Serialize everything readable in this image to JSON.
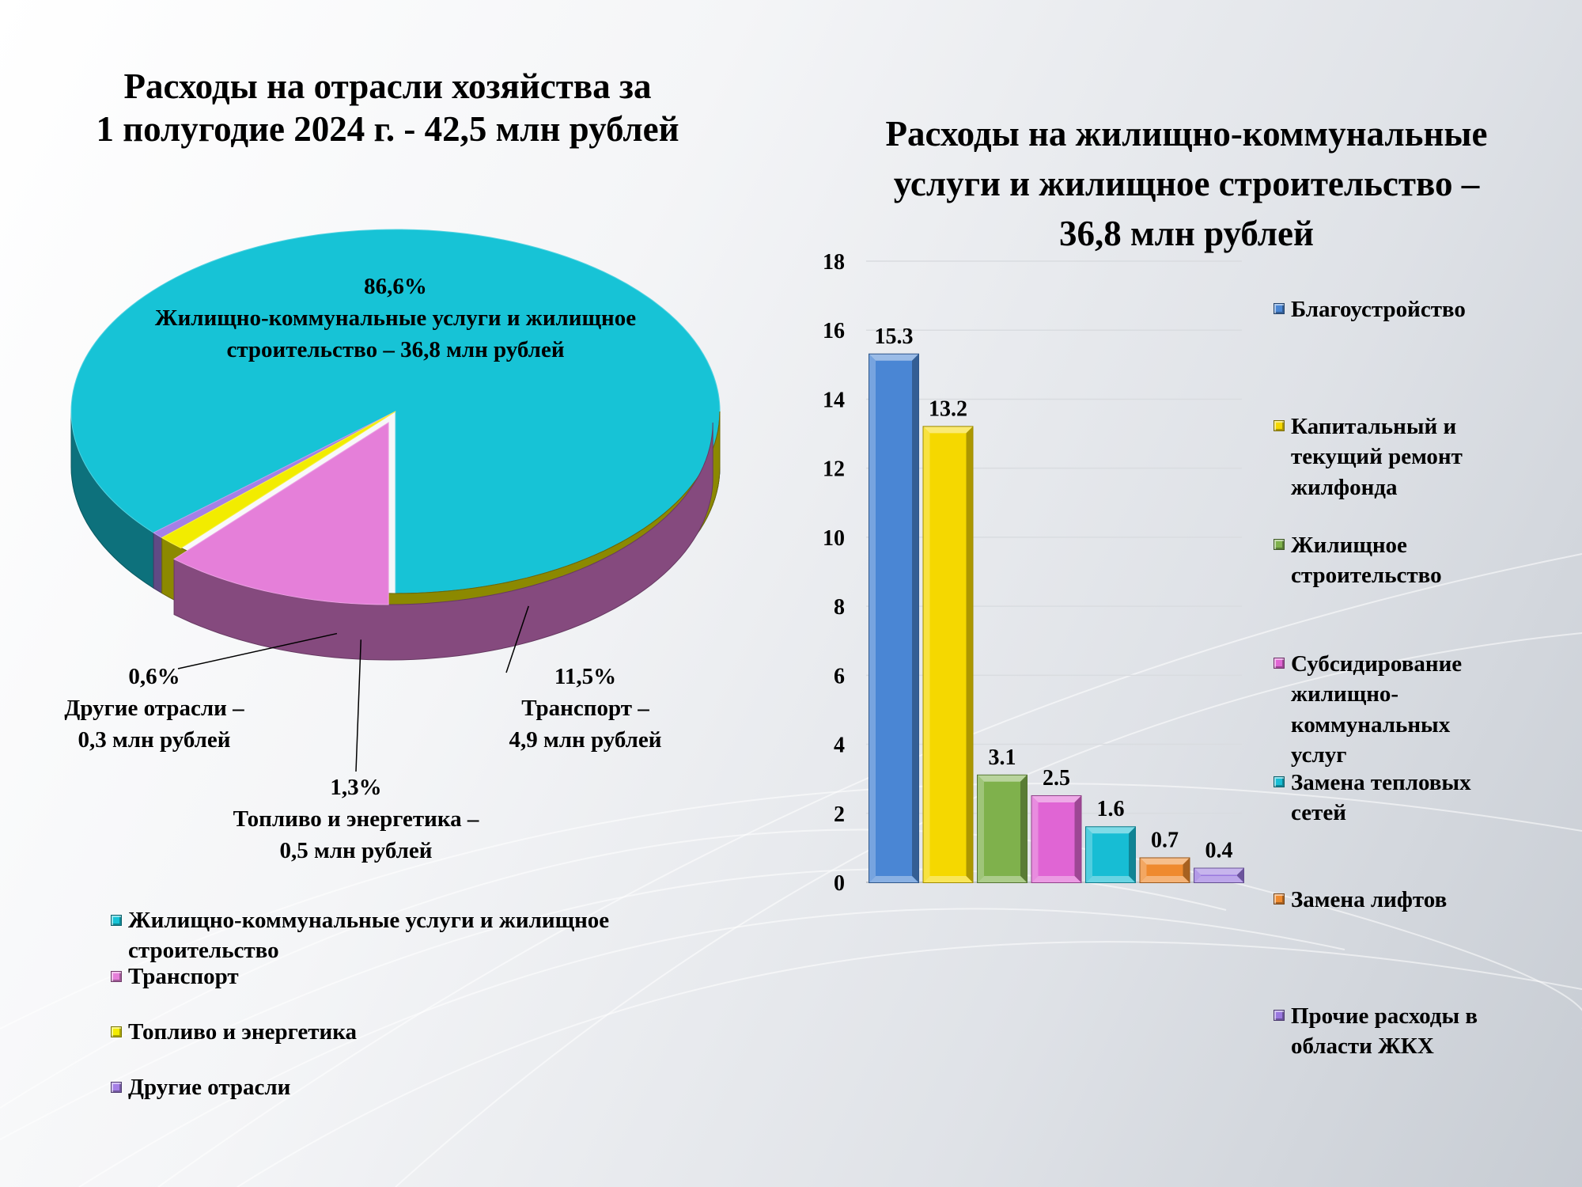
{
  "pie": {
    "title_line1": "Расходы на отрасли хозяйства за",
    "title_line2": "1 полугодие 2024 г. - 42,5 млн рублей",
    "labels": [
      {
        "percent": "86,6%",
        "line1": "Жилищно-коммунальные услуги и жилищное",
        "line2": "строительство – 36,8 млн рублей"
      },
      {
        "percent": "11,5%",
        "line1": "Транспорт –",
        "line2": "4,9 млн рублей"
      },
      {
        "percent": "1,3%",
        "line1": "Топливо и энергетика –",
        "line2": "0,5 млн рублей"
      },
      {
        "percent": "0,6%",
        "line1": "Другие отрасли –",
        "line2": "0,3 млн рублей"
      }
    ],
    "legend": [
      {
        "line1": "Жилищно-коммунальные услуги и жилищное",
        "line2": "строительство",
        "color": "#17c3d6"
      },
      {
        "line1": "Транспорт",
        "line2": "",
        "color": "#e57fd9"
      },
      {
        "line1": "Топливо и энергетика",
        "line2": "",
        "color": "#f2ec00"
      },
      {
        "line1": "Другие отрасли",
        "line2": "",
        "color": "#a57fe6"
      }
    ]
  },
  "bar": {
    "title_line1": "Расходы на жилищно-коммунальные",
    "title_line2": "услуги и жилищное строительство –",
    "title_line3": "36,8 млн рублей",
    "legend": [
      {
        "line1": "Благоустройство",
        "line2": "",
        "line3": "",
        "line4": "",
        "color": "#4a86d4"
      },
      {
        "line1": "Капитальный и",
        "line2": "текущий ремонт",
        "line3": "жилфонда",
        "line4": "",
        "color": "#f5d800"
      },
      {
        "line1": "Жилищное",
        "line2": "строительство",
        "line3": "",
        "line4": "",
        "color": "#7fb14c"
      },
      {
        "line1": "Субсидирование",
        "line2": "жилищно-",
        "line3": "коммунальных",
        "line4": "услуг",
        "color": "#e065d4"
      },
      {
        "line1": "Замена тепловых",
        "line2": "сетей",
        "line3": "",
        "line4": "",
        "color": "#17bdd4"
      },
      {
        "line1": "Замена лифтов",
        "line2": "",
        "line3": "",
        "line4": "",
        "color": "#ef8a2e"
      },
      {
        "line1": "Прочие расходы в",
        "line2": "области ЖКХ",
        "line3": "",
        "line4": "",
        "color": "#9a78df"
      }
    ]
  },
  "chart_data": [
    {
      "type": "pie",
      "title": "Расходы на отрасли хозяйства за 1 полугодие 2024 г. - 42,5 млн рублей",
      "categories": [
        "Жилищно-коммунальные услуги и жилищное строительство",
        "Транспорт",
        "Топливо и энергетика",
        "Другие отрасли"
      ],
      "values": [
        86.6,
        11.5,
        1.3,
        0.6
      ],
      "amounts_mln_rub": [
        36.8,
        4.9,
        0.5,
        0.3
      ],
      "colors": [
        "#17c3d6",
        "#e57fd9",
        "#f2ec00",
        "#a57fe6"
      ],
      "legend": "bottom-left"
    },
    {
      "type": "bar",
      "title": "Расходы на жилищно-коммунальные услуги и жилищное строительство – 36,8 млн рублей",
      "categories": [
        "Благоустройство",
        "Капитальный и текущий ремонт жилфонда",
        "Жилищное строительство",
        "Субсидирование жилищно-коммунальных услуг",
        "Замена тепловых сетей",
        "Замена лифтов",
        "Прочие расходы в области ЖКХ"
      ],
      "values": [
        15.3,
        13.2,
        3.1,
        2.5,
        1.6,
        0.7,
        0.4
      ],
      "value_labels": [
        "15.3",
        "13.2",
        "3.1",
        "2.5",
        "1.6",
        "0.7",
        "0.4"
      ],
      "colors": [
        "#4a86d4",
        "#f5d800",
        "#7fb14c",
        "#e065d4",
        "#17bdd4",
        "#ef8a2e",
        "#9a78df"
      ],
      "ylim": [
        0,
        18
      ],
      "yticks": [
        0,
        2,
        4,
        6,
        8,
        10,
        12,
        14,
        16,
        18
      ],
      "grid": true,
      "legend": "right"
    }
  ]
}
